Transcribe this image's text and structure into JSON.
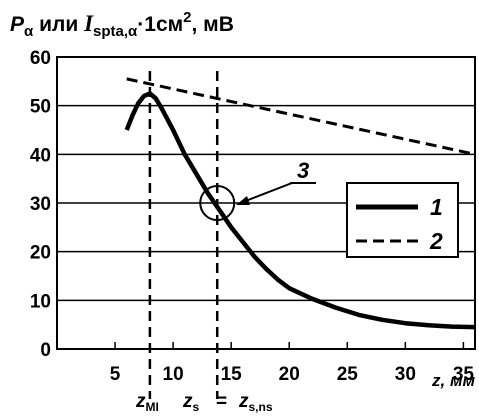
{
  "chart_data": {
    "type": "line",
    "title_parts": {
      "p": "P",
      "p_sub": "α",
      "or_text": " или ",
      "i": "I",
      "i_sub": "spta,α",
      "mult": "·1см",
      "sup": "2",
      "unit": ", мВ"
    },
    "xlabel": "z, мм",
    "xlim": [
      0,
      36
    ],
    "ylim": [
      0,
      60
    ],
    "x_ticks": [
      5,
      10,
      15,
      20,
      25,
      30,
      35
    ],
    "y_ticks": [
      0,
      10,
      20,
      30,
      40,
      50,
      60
    ],
    "grid": "horizontal",
    "series": [
      {
        "name": "1",
        "style": "solid",
        "x": [
          6.0,
          6.5,
          7.0,
          7.5,
          8.0,
          8.5,
          9.0,
          10.0,
          11.0,
          12.0,
          13.0,
          14.0,
          15.0,
          16.0,
          17.0,
          18.0,
          19.0,
          20.0,
          22.0,
          24.0,
          26.0,
          28.0,
          30.0,
          32.0,
          34.0,
          36.0
        ],
        "y": [
          45.0,
          48.0,
          50.5,
          52.0,
          52.5,
          51.5,
          49.5,
          45.0,
          40.0,
          36.0,
          32.0,
          28.5,
          25.0,
          22.0,
          19.0,
          16.5,
          14.3,
          12.5,
          10.3,
          8.5,
          7.0,
          6.0,
          5.3,
          4.9,
          4.6,
          4.5
        ]
      },
      {
        "name": "2",
        "style": "dashed",
        "x": [
          6.0,
          36.0
        ],
        "y": [
          55.5,
          40.0
        ]
      }
    ],
    "legend": {
      "position": "right",
      "entries": [
        "1",
        "2"
      ]
    },
    "vlines": [
      8.0,
      13.8
    ],
    "annotations": {
      "circle_label": "3",
      "circle_at": [
        13.8,
        30.0
      ],
      "vline_labels": {
        "zmi": {
          "main": "z",
          "sub": "MI"
        },
        "zs": {
          "main": "z",
          "sub": "s"
        },
        "eq": "=",
        "zsns": {
          "main": "z",
          "sub": "s,ns"
        }
      }
    },
    "colors": {
      "line": "#000000",
      "grid": "#000000",
      "background": "#ffffff"
    }
  }
}
